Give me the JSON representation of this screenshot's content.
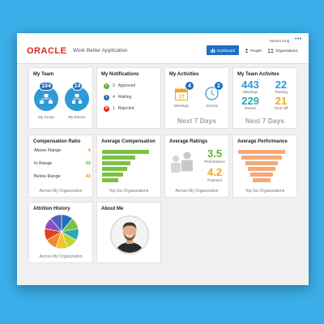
{
  "header": {
    "logo": "ORACLE",
    "app_title": "Work Better Application",
    "user_name": "Steven King",
    "menu_dots": "•••",
    "nav": {
      "dashboard": "Dashboard",
      "people": "People",
      "organizations": "Organizations"
    }
  },
  "my_team": {
    "title": "My Team",
    "my_group_count": "104",
    "my_group_label": "My Group",
    "my_directs_count": "14",
    "my_directs_label": "My Directs"
  },
  "notifications": {
    "title": "My Notifications",
    "items": [
      {
        "count": "3",
        "label": "Approved",
        "color": "#5fb233",
        "icon": "check-icon"
      },
      {
        "count": "4",
        "label": "Waiting",
        "color": "#1f6fc1",
        "icon": "info-icon"
      },
      {
        "count": "1",
        "label": "Rejected",
        "color": "#e2231a",
        "icon": "cross-icon"
      }
    ]
  },
  "activities": {
    "title": "My Activities",
    "meetings_count": "4",
    "meetings_label": "Meetings",
    "calendar_day": "17",
    "events_count": "2",
    "events_label": "Events",
    "period": "Next 7 Days"
  },
  "team_activities": {
    "title": "My Team Activites",
    "meetings": "443",
    "meetings_label": "Meetings",
    "training": "22",
    "training_label": "Training",
    "events": "229",
    "events_label": "Events",
    "timeoff": "21",
    "timeoff_label": "Time Off",
    "period": "Next 7 Days"
  },
  "compensation_ratio": {
    "title": "Compensation Ratio",
    "rows": [
      {
        "label": "Above Range",
        "value": "6",
        "color": "#f08c2e"
      },
      {
        "label": "In Range",
        "value": "52",
        "color": "#5fb233"
      },
      {
        "label": "Below Range",
        "value": "43",
        "color": "#f08c2e"
      }
    ],
    "footer": "Across My Organization"
  },
  "avg_compensation": {
    "title": "Average Compensation",
    "bar_color": "#7cc242",
    "bars": [
      1.0,
      0.7,
      0.6,
      0.53,
      0.45,
      0.35
    ],
    "footer": "Top Six Organizations"
  },
  "avg_ratings": {
    "title": "Average Ratings",
    "performance": "3.5",
    "performance_label": "Performance",
    "potential": "4.2",
    "potential_label": "Potential",
    "footer": "Across My Organization"
  },
  "avg_performance": {
    "title": "Average Performance",
    "bar_color": "#f5a878",
    "bars": [
      1.0,
      0.87,
      0.7,
      0.57,
      0.47,
      0.37
    ],
    "footer": "Top Six Organizations"
  },
  "attrition": {
    "title": "Attrition History",
    "footer": "Across My Organization",
    "slice_colors": [
      "#1f6fc1",
      "#7cc242",
      "#2aa7b8",
      "#c4d631",
      "#f2c230",
      "#f08c2e",
      "#e2431e",
      "#8a4fbf",
      "#4f5fbf"
    ]
  },
  "about_me": {
    "title": "About Me"
  }
}
